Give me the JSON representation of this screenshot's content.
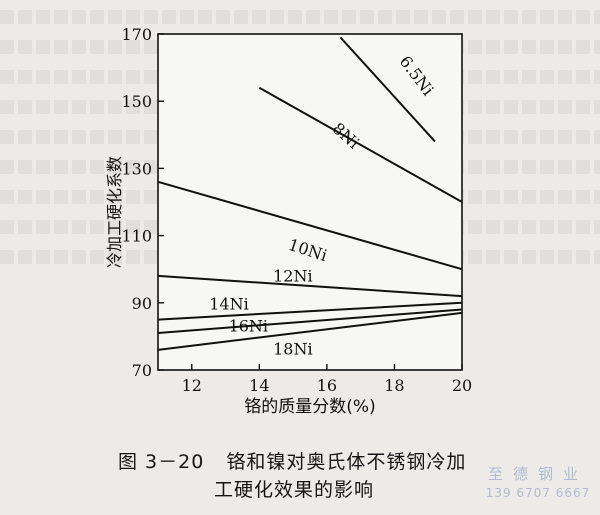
{
  "chart_data": {
    "type": "line",
    "xlabel": "铬的质量分数(%)",
    "ylabel": "冷加工硬化系数",
    "xlim": [
      11,
      20
    ],
    "ylim": [
      70,
      170
    ],
    "x_ticks": [
      12,
      14,
      16,
      18,
      20
    ],
    "y_ticks": [
      70,
      90,
      110,
      130,
      150,
      170
    ],
    "grid": false,
    "series": [
      {
        "name": "6.5Ni",
        "x": [
          16.4,
          19.2
        ],
        "y": [
          169,
          138
        ]
      },
      {
        "name": "8Ni",
        "x": [
          14.0,
          20.0
        ],
        "y": [
          154,
          120
        ]
      },
      {
        "name": "10Ni",
        "x": [
          11.0,
          20.0
        ],
        "y": [
          126,
          100
        ]
      },
      {
        "name": "12Ni",
        "x": [
          11.0,
          20.0
        ],
        "y": [
          98,
          92
        ]
      },
      {
        "name": "14Ni",
        "x": [
          11.0,
          20.0
        ],
        "y": [
          85,
          90
        ]
      },
      {
        "name": "16Ni",
        "x": [
          11.0,
          20.0
        ],
        "y": [
          81,
          88
        ]
      },
      {
        "name": "18Ni",
        "x": [
          11.0,
          20.0
        ],
        "y": [
          76,
          87
        ]
      }
    ]
  },
  "caption": {
    "number": "图 3－20",
    "line1": "铬和镍对奥氏体不锈钢冷加",
    "line2": "工硬化效果的影响"
  },
  "watermark": {
    "name": "至德钢业",
    "phone": "139 6707 6667"
  }
}
